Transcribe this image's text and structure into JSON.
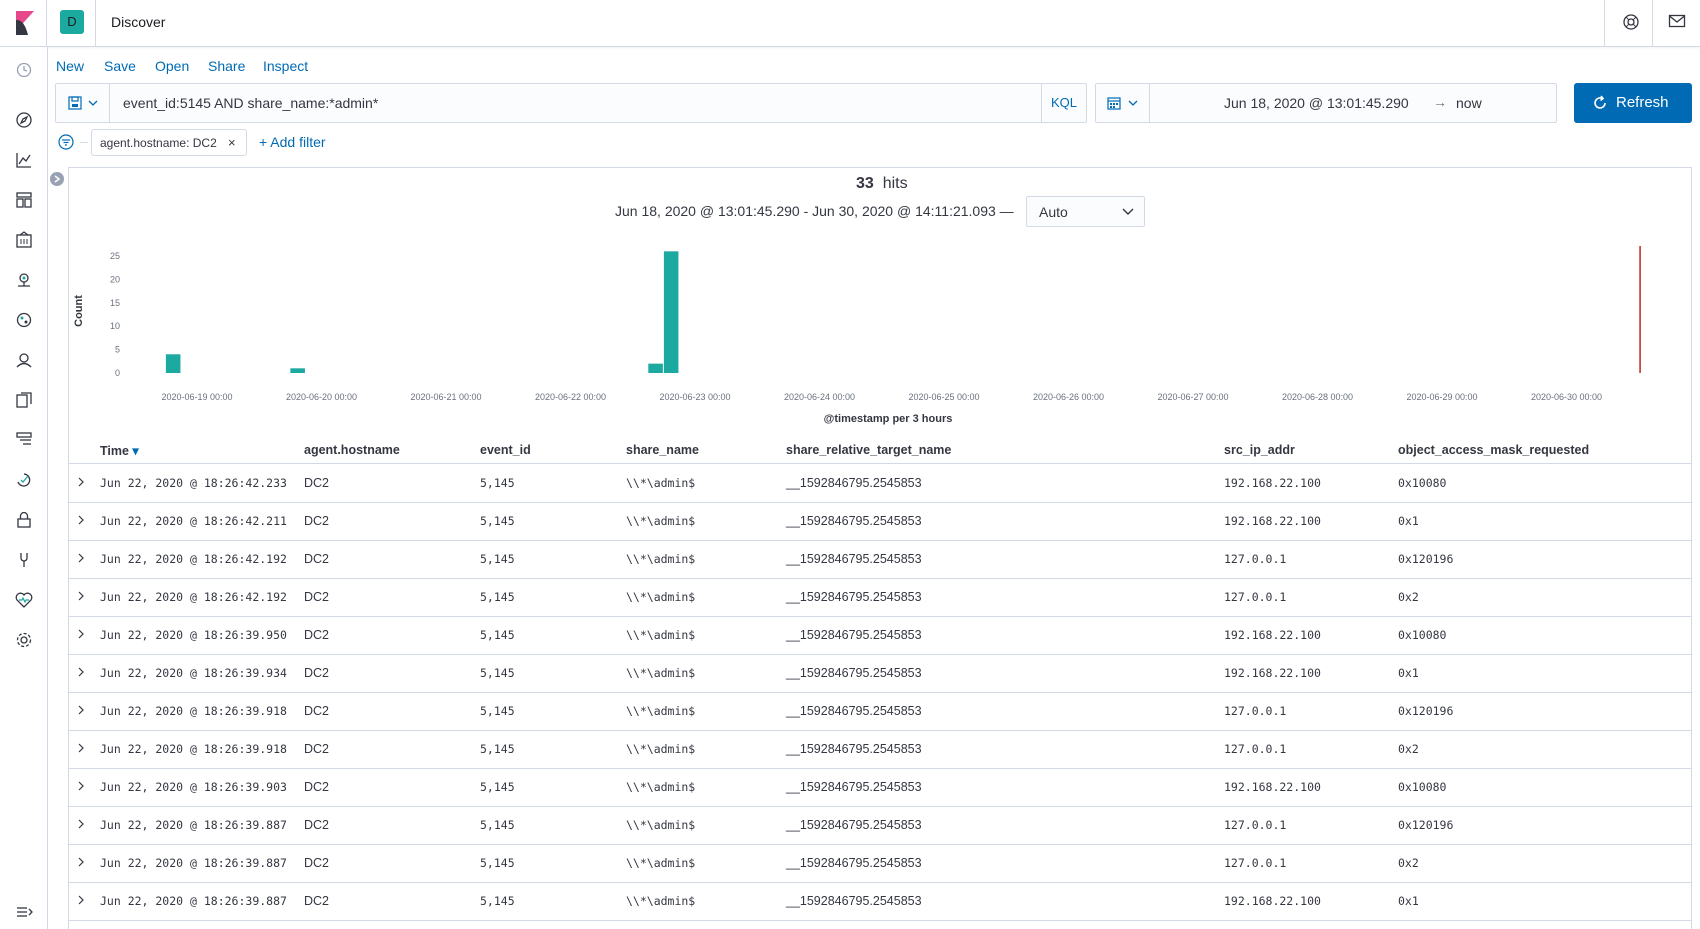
{
  "header": {
    "space_initial": "D",
    "app_title": "Discover",
    "right_icons": [
      "help-icon",
      "mail-icon"
    ]
  },
  "leftnav": {
    "icons": [
      "recently-viewed-icon",
      "discover-icon",
      "visualize-icon",
      "dashboard-icon",
      "canvas-icon",
      "maps-icon",
      "ml-icon",
      "siem-icon",
      "uptime-icon",
      "logs-icon",
      "apm-icon",
      "security-icon",
      "dev-tools-icon",
      "monitoring-icon",
      "management-icon",
      "dock-icon"
    ]
  },
  "topmenu": {
    "new": "New",
    "save": "Save",
    "open": "Open",
    "share": "Share",
    "inspect": "Inspect"
  },
  "query": {
    "text": "event_id:5145 AND share_name:*admin*",
    "language": "KQL"
  },
  "date": {
    "start": "Jun 18, 2020 @ 13:01:45.290",
    "arrow": "→",
    "end": "now"
  },
  "refresh_label": "Refresh",
  "filters": {
    "pill": "agent.hostname: DC2",
    "pill_close": "×",
    "add": "+ Add filter"
  },
  "hits": {
    "count": "33",
    "label": "hits"
  },
  "range_text": "Jun 18, 2020 @ 13:01:45.290 - Jun 30, 2020 @ 14:11:21.093 —",
  "interval": "Auto",
  "chart_data": {
    "type": "bar",
    "ylabel": "Count",
    "xlabel": "@timestamp per 3 hours",
    "ylim": [
      0,
      25
    ],
    "yticks": [
      "0",
      "5",
      "10",
      "15",
      "20",
      "25"
    ],
    "xticks": [
      "2020-06-19 00:00",
      "2020-06-20 00:00",
      "2020-06-21 00:00",
      "2020-06-22 00:00",
      "2020-06-23 00:00",
      "2020-06-24 00:00",
      "2020-06-25 00:00",
      "2020-06-26 00:00",
      "2020-06-27 00:00",
      "2020-06-28 00:00",
      "2020-06-29 00:00",
      "2020-06-30 00:00"
    ],
    "bar_color": "#1ba9a0",
    "bars": [
      {
        "x": "2020-06-18 18:00",
        "value": 4
      },
      {
        "x": "2020-06-19 18:00",
        "value": 1
      },
      {
        "x": "2020-06-22 15:00",
        "value": 2
      },
      {
        "x": "2020-06-22 18:00",
        "value": 26
      }
    ],
    "now_marker": "2020-06-30 14:11"
  },
  "table": {
    "columns": [
      "Time",
      "agent.hostname",
      "event_id",
      "share_name",
      "share_relative_target_name",
      "src_ip_addr",
      "object_access_mask_requested"
    ],
    "sort_icon": "▾",
    "rows": [
      [
        "Jun 22, 2020 @ 18:26:42.233",
        "DC2",
        "5,145",
        "\\\\*\\admin$",
        "__1592846795.2545853",
        "192.168.22.100",
        "0x10080"
      ],
      [
        "Jun 22, 2020 @ 18:26:42.211",
        "DC2",
        "5,145",
        "\\\\*\\admin$",
        "__1592846795.2545853",
        "192.168.22.100",
        "0x1"
      ],
      [
        "Jun 22, 2020 @ 18:26:42.192",
        "DC2",
        "5,145",
        "\\\\*\\admin$",
        "__1592846795.2545853",
        "127.0.0.1",
        "0x120196"
      ],
      [
        "Jun 22, 2020 @ 18:26:42.192",
        "DC2",
        "5,145",
        "\\\\*\\admin$",
        "__1592846795.2545853",
        "127.0.0.1",
        "0x2"
      ],
      [
        "Jun 22, 2020 @ 18:26:39.950",
        "DC2",
        "5,145",
        "\\\\*\\admin$",
        "__1592846795.2545853",
        "192.168.22.100",
        "0x10080"
      ],
      [
        "Jun 22, 2020 @ 18:26:39.934",
        "DC2",
        "5,145",
        "\\\\*\\admin$",
        "__1592846795.2545853",
        "192.168.22.100",
        "0x1"
      ],
      [
        "Jun 22, 2020 @ 18:26:39.918",
        "DC2",
        "5,145",
        "\\\\*\\admin$",
        "__1592846795.2545853",
        "127.0.0.1",
        "0x120196"
      ],
      [
        "Jun 22, 2020 @ 18:26:39.918",
        "DC2",
        "5,145",
        "\\\\*\\admin$",
        "__1592846795.2545853",
        "127.0.0.1",
        "0x2"
      ],
      [
        "Jun 22, 2020 @ 18:26:39.903",
        "DC2",
        "5,145",
        "\\\\*\\admin$",
        "__1592846795.2545853",
        "192.168.22.100",
        "0x10080"
      ],
      [
        "Jun 22, 2020 @ 18:26:39.887",
        "DC2",
        "5,145",
        "\\\\*\\admin$",
        "__1592846795.2545853",
        "127.0.0.1",
        "0x120196"
      ],
      [
        "Jun 22, 2020 @ 18:26:39.887",
        "DC2",
        "5,145",
        "\\\\*\\admin$",
        "__1592846795.2545853",
        "127.0.0.1",
        "0x2"
      ],
      [
        "Jun 22, 2020 @ 18:26:39.887",
        "DC2",
        "5,145",
        "\\\\*\\admin$",
        "__1592846795.2545853",
        "192.168.22.100",
        "0x1"
      ]
    ]
  }
}
